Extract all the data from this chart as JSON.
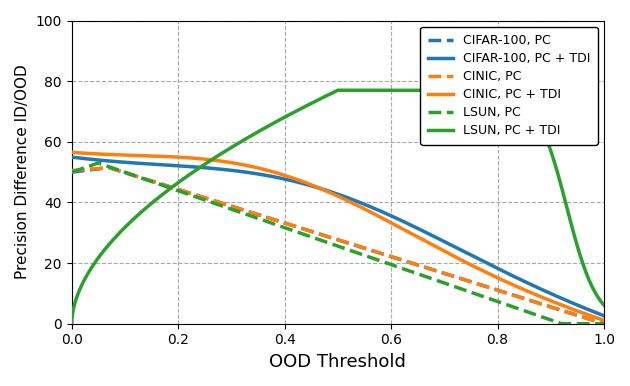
{
  "title": "",
  "xlabel": "OOD Threshold",
  "ylabel": "Precision Difference ID/OOD",
  "xlim": [
    0.0,
    1.0
  ],
  "ylim": [
    0,
    100
  ],
  "yticks": [
    0,
    20,
    40,
    60,
    80,
    100
  ],
  "xticks": [
    0.0,
    0.2,
    0.4,
    0.6,
    0.8,
    1.0
  ],
  "colors": {
    "blue": "#1f77b4",
    "orange": "#ff7f0e",
    "green": "#2ca02c"
  },
  "legend_entries": [
    {
      "label": "CIFAR-100, PC",
      "color": "#1f77b4",
      "linestyle": "dashed"
    },
    {
      "label": "CIFAR-100, PC + TDI",
      "color": "#1f77b4",
      "linestyle": "solid"
    },
    {
      "label": "CINIC, PC",
      "color": "#ff7f0e",
      "linestyle": "dashed"
    },
    {
      "label": "CINIC, PC + TDI",
      "color": "#ff7f0e",
      "linestyle": "solid"
    },
    {
      "label": "LSUN, PC",
      "color": "#2ca02c",
      "linestyle": "dashed"
    },
    {
      "label": "LSUN, PC + TDI",
      "color": "#2ca02c",
      "linestyle": "solid"
    }
  ],
  "grid_color": "#aaaaaa",
  "grid_linestyle": "--",
  "background_color": "#ffffff",
  "linewidth": 2.5
}
